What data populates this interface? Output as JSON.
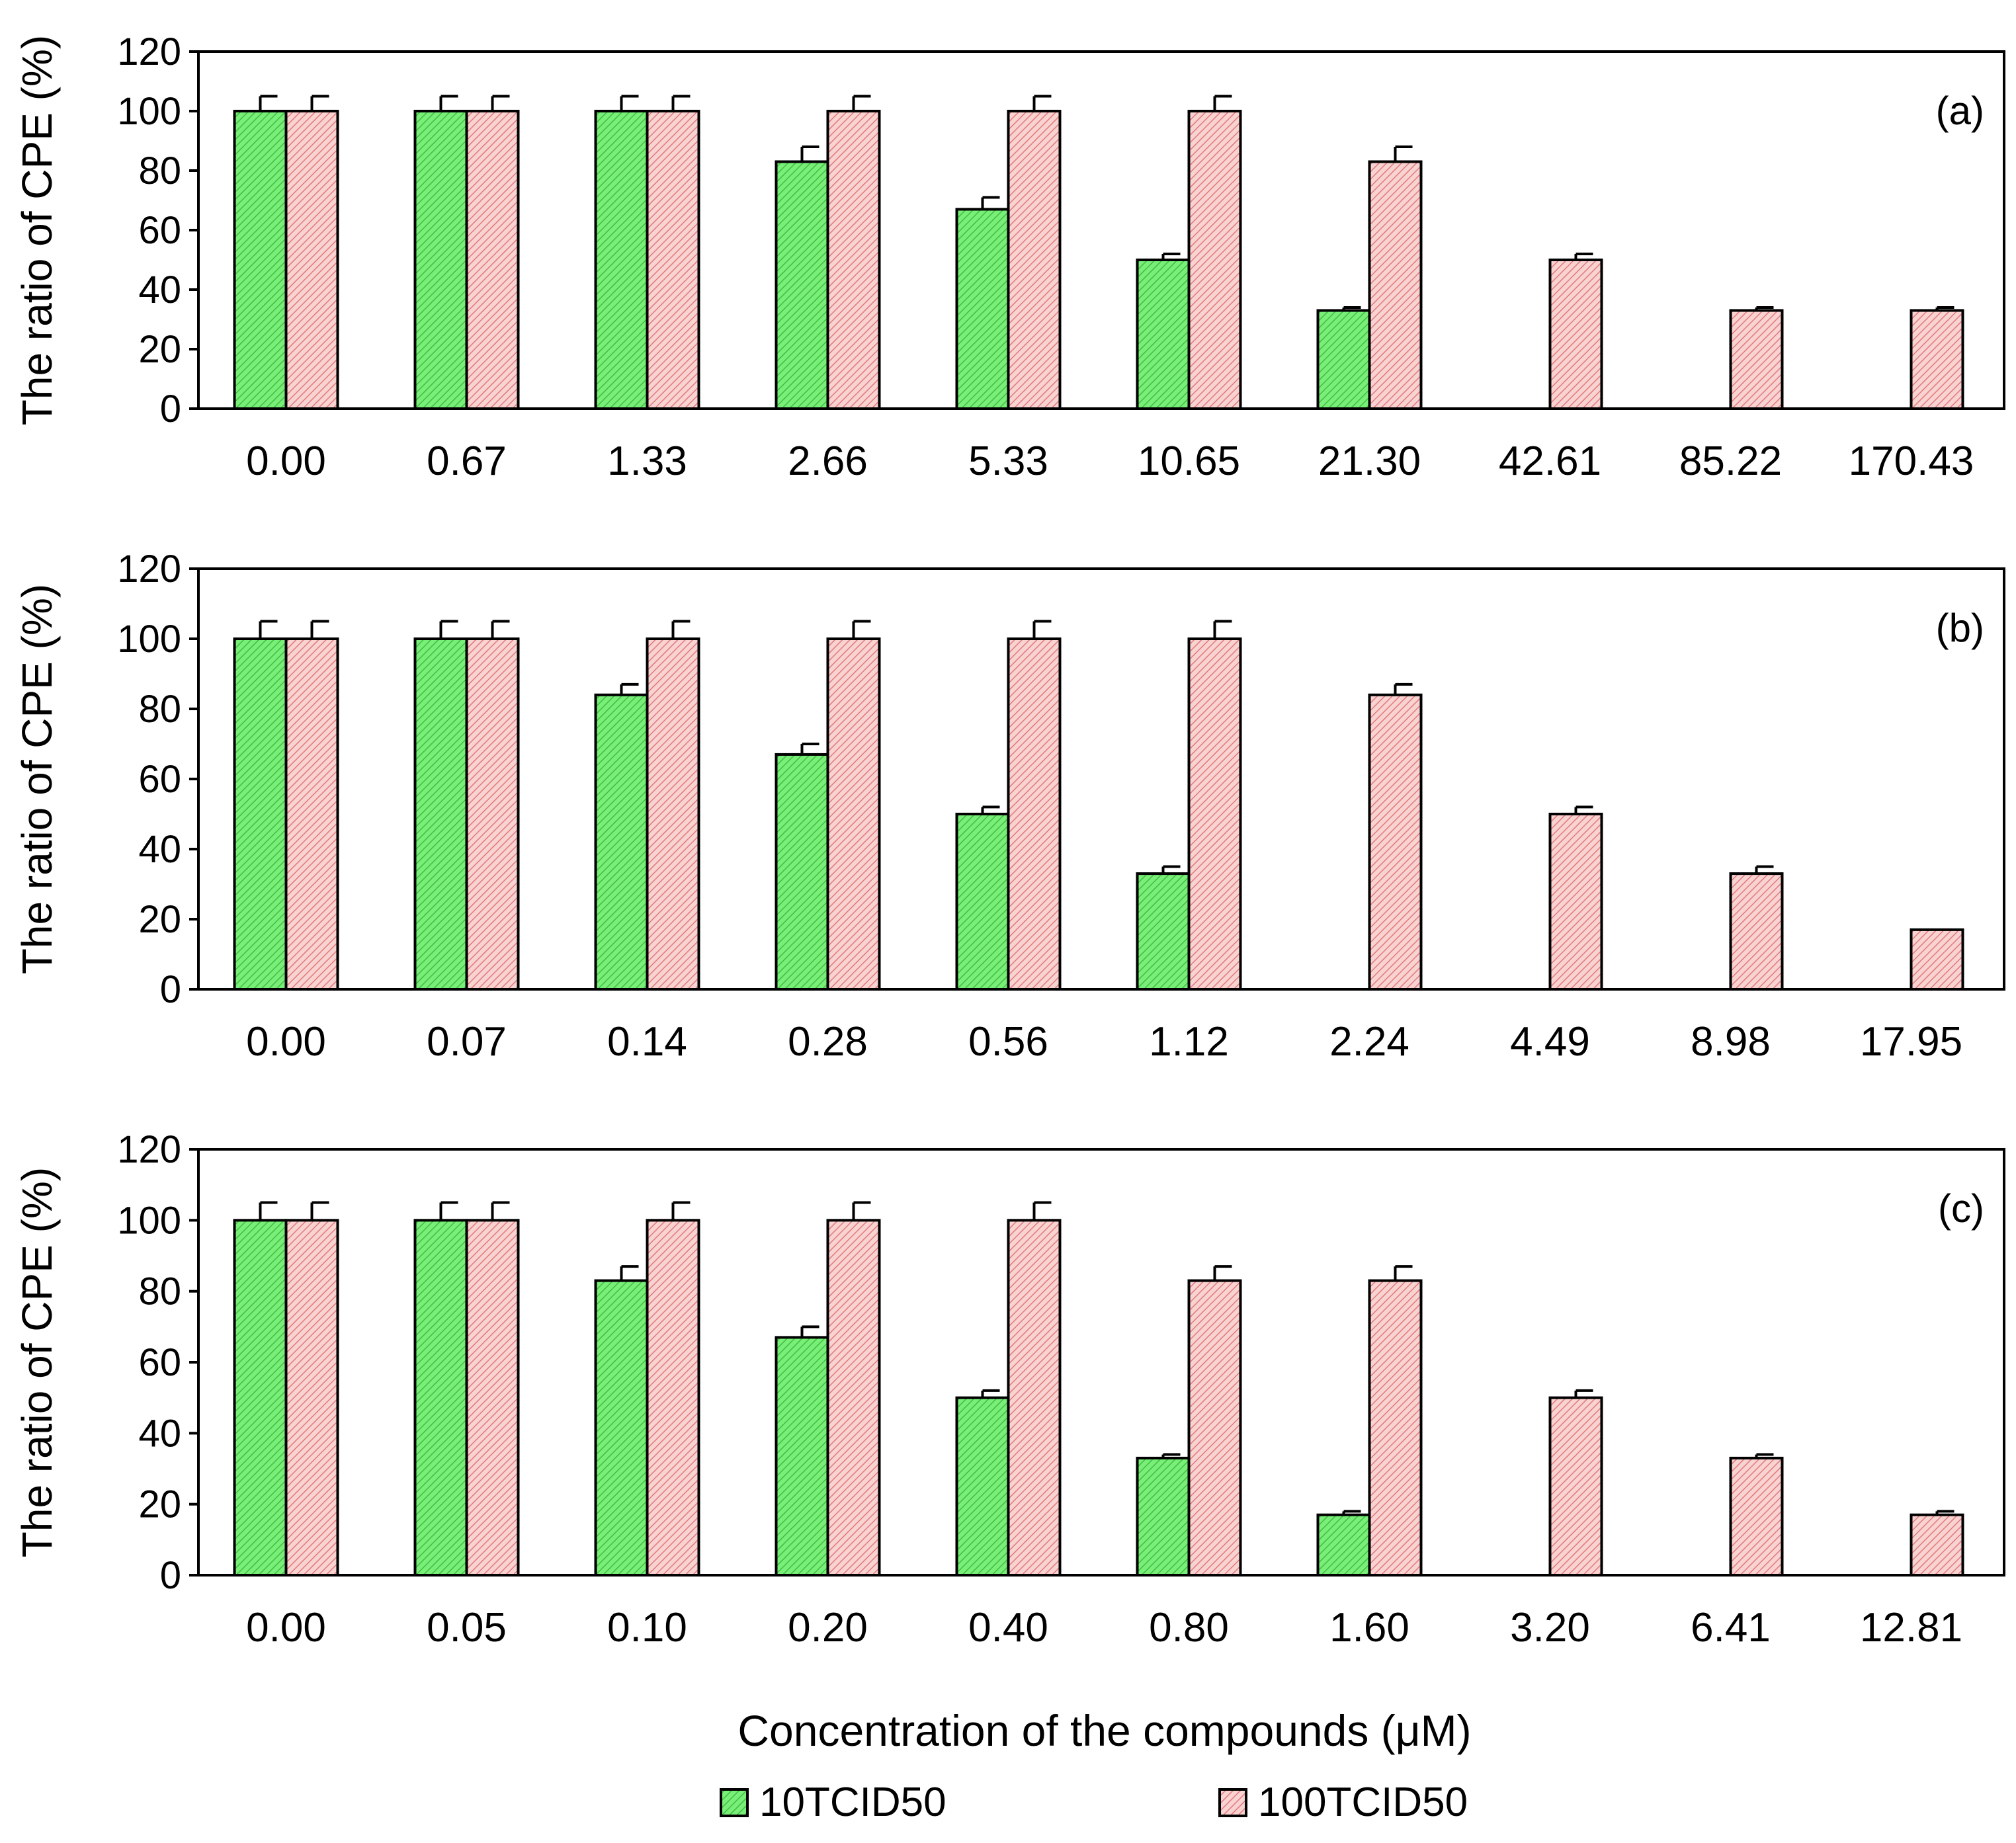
{
  "figure": {
    "xlabel": "Concentration of the compounds (μM)",
    "legend": [
      {
        "name": "10TCID50",
        "color": "#6ee86e",
        "pattern": "hatch-green"
      },
      {
        "name": "100TCID50",
        "color": "#f7c6c6",
        "pattern": "hatch-pink"
      }
    ]
  },
  "chart_data": [
    {
      "type": "bar",
      "panel_label": "(a)",
      "ylabel": "The ratio of CPE (%)",
      "ylim": [
        0,
        120
      ],
      "yticks": [
        0,
        20,
        40,
        60,
        80,
        100,
        120
      ],
      "categories": [
        "0.00",
        "0.67",
        "1.33",
        "2.66",
        "5.33",
        "10.65",
        "21.30",
        "42.61",
        "85.22",
        "170.43"
      ],
      "series": [
        {
          "name": "10TCID50",
          "values": [
            100,
            100,
            100,
            83,
            67,
            50,
            33,
            0,
            0,
            0
          ],
          "errors": [
            5,
            5,
            5,
            5,
            4,
            2,
            1,
            0,
            0,
            0
          ]
        },
        {
          "name": "100TCID50",
          "values": [
            100,
            100,
            100,
            100,
            100,
            100,
            83,
            50,
            33,
            33
          ],
          "errors": [
            5,
            5,
            5,
            5,
            5,
            5,
            5,
            2,
            1,
            1
          ]
        }
      ]
    },
    {
      "type": "bar",
      "panel_label": "(b)",
      "ylabel": "The ratio of CPE (%)",
      "ylim": [
        0,
        120
      ],
      "yticks": [
        0,
        20,
        40,
        60,
        80,
        100,
        120
      ],
      "categories": [
        "0.00",
        "0.07",
        "0.14",
        "0.28",
        "0.56",
        "1.12",
        "2.24",
        "4.49",
        "8.98",
        "17.95"
      ],
      "series": [
        {
          "name": "10TCID50",
          "values": [
            100,
            100,
            84,
            67,
            50,
            33,
            0,
            0,
            0,
            0
          ],
          "errors": [
            5,
            5,
            3,
            3,
            2,
            2,
            0,
            0,
            0,
            0
          ]
        },
        {
          "name": "100TCID50",
          "values": [
            100,
            100,
            100,
            100,
            100,
            100,
            84,
            50,
            33,
            17
          ],
          "errors": [
            5,
            5,
            5,
            5,
            5,
            5,
            3,
            2,
            2,
            0
          ]
        }
      ]
    },
    {
      "type": "bar",
      "panel_label": "(c)",
      "ylabel": "The ratio of CPE (%)",
      "ylim": [
        0,
        120
      ],
      "yticks": [
        0,
        20,
        40,
        60,
        80,
        100,
        120
      ],
      "categories": [
        "0.00",
        "0.05",
        "0.10",
        "0.20",
        "0.40",
        "0.80",
        "1.60",
        "3.20",
        "6.41",
        "12.81"
      ],
      "series": [
        {
          "name": "10TCID50",
          "values": [
            100,
            100,
            83,
            67,
            50,
            33,
            17,
            0,
            0,
            0
          ],
          "errors": [
            5,
            5,
            4,
            3,
            2,
            1,
            1,
            0,
            0,
            0
          ]
        },
        {
          "name": "100TCID50",
          "values": [
            100,
            100,
            100,
            100,
            100,
            83,
            83,
            50,
            33,
            17
          ],
          "errors": [
            5,
            5,
            5,
            5,
            5,
            4,
            4,
            2,
            1,
            1
          ]
        }
      ]
    }
  ]
}
